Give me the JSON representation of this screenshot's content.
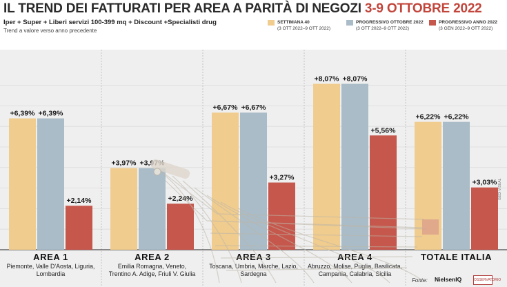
{
  "header": {
    "title_main": "IL TREND DEI FATTURATI PER AREA A PARITÀ DI NEGOZI ",
    "title_highlight": "3-9 OTTOBRE 2022",
    "subtitle": "Iper + Super + Liberi servizi 100-399 mq + Discount +Specialisti drug",
    "note": "Trend a valore verso anno precedente"
  },
  "legend": [
    {
      "title": "SETTIMANA 40",
      "period": "(3 OTT 2022–9 OTT 2022)",
      "color": "#f0cc8e"
    },
    {
      "title": "PROGRESSIVO OTTOBRE 2022",
      "period": "(3 OTT 2022–9 OTT 2022)",
      "color": "#a9bcc8"
    },
    {
      "title": "PROGRESSIVO ANNO 2022",
      "period": "(3 GEN 2022–9 OTT 2022)",
      "color": "#c5574c"
    }
  ],
  "chart_data": {
    "type": "bar",
    "title": "IL TREND DEI FATTURATI PER AREA A PARITÀ DI NEGOZI 3-9 OTTOBRE 2022",
    "ylabel": "",
    "ylim": [
      0,
      9
    ],
    "grid": true,
    "legend_placement": "top-right",
    "categories": [
      "AREA 1",
      "AREA 2",
      "AREA 3",
      "AREA 4",
      "TOTALE ITALIA"
    ],
    "category_regions": [
      [
        "Piemonte, Valle D'Aosta, Liguria,",
        "Lombardia"
      ],
      [
        "Emilia Romagna, Veneto,",
        "Trentino A. Adige, Friuli V. Giulia"
      ],
      [
        "Toscana, Umbria, Marche, Lazio,",
        "Sardegna"
      ],
      [
        "Abruzzo, Molise, Puglia, Basilicata,",
        "Campania, Calabria, Sicilia"
      ],
      []
    ],
    "series": [
      {
        "name": "SETTIMANA 40",
        "values": [
          6.39,
          3.97,
          6.67,
          8.07,
          6.22
        ],
        "labels": [
          "+6,39%",
          "+3,97%",
          "+6,67%",
          "+8,07%",
          "+6,22%"
        ],
        "color": "#f0cc8e"
      },
      {
        "name": "PROGRESSIVO OTTOBRE 2022",
        "values": [
          6.39,
          3.97,
          6.67,
          8.07,
          6.22
        ],
        "labels": [
          "+6,39%",
          "+3,97%",
          "+6,67%",
          "+8,07%",
          "+6,22%"
        ],
        "color": "#a9bcc8"
      },
      {
        "name": "PROGRESSIVO ANNO 2022",
        "values": [
          2.14,
          2.24,
          3.27,
          5.56,
          3.03
        ],
        "labels": [
          "+2,14%",
          "+2,24%",
          "+3,27%",
          "+5,56%",
          "+3,03%"
        ],
        "color": "#c5574c"
      }
    ]
  },
  "footer": {
    "source_label": "Fonte:",
    "logo_nielsen": "NielsenIQ",
    "logo_osservatorio": "OSSERVATORIO",
    "credit": "GEDI VISUAL"
  }
}
